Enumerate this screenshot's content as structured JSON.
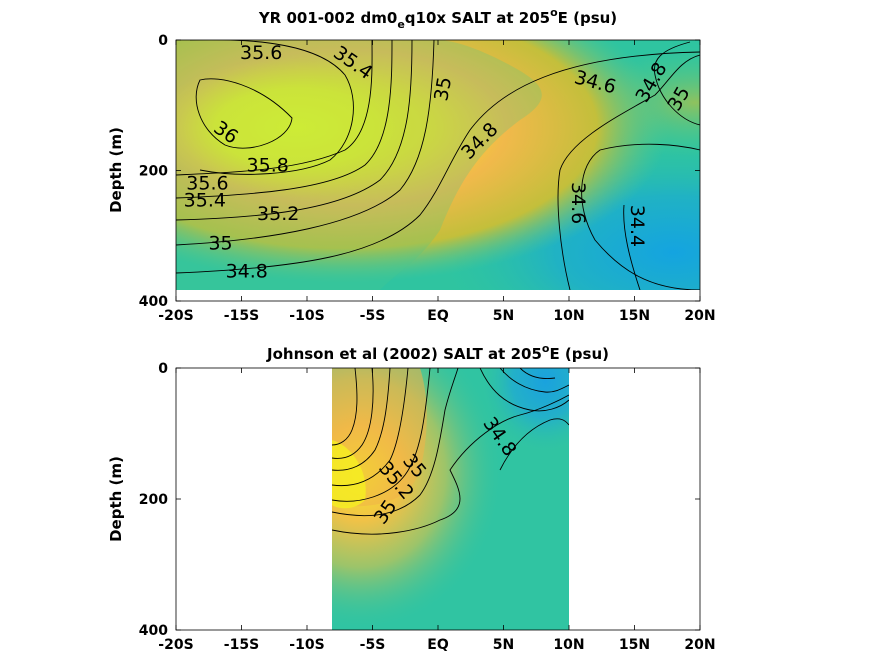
{
  "colors": {
    "low": "#1aa3dc",
    "mid": "#2fc4a0",
    "high": "#f5f51e",
    "axis": "#000000",
    "background": "#ffffff"
  },
  "chart_data": [
    {
      "type": "heatmap",
      "title_parts": [
        "YR 001-002 dm0",
        "e",
        "q10x SALT at 205",
        "o",
        "E (psu)"
      ],
      "xlabel": "",
      "ylabel": "Depth (m)",
      "x_ticks": [
        "-20S",
        "-15S",
        "-10S",
        "-5S",
        "EQ",
        "5N",
        "10N",
        "15N",
        "20N"
      ],
      "y_ticks": [
        "0",
        "200",
        "400"
      ],
      "xlim": [
        -20,
        20
      ],
      "ylim": [
        0,
        400
      ],
      "data_extent": {
        "x": [
          -20,
          20
        ],
        "depth": [
          0,
          385
        ]
      },
      "salinity_range": [
        34.3,
        36.1
      ],
      "features": [
        {
          "x": -12.5,
          "depth": 110,
          "salinity": 36.05
        },
        {
          "x": -18,
          "depth": 180,
          "salinity": 35.5
        },
        {
          "x": 0,
          "depth": 150,
          "salinity": 34.85
        },
        {
          "x": 6,
          "depth": 250,
          "salinity": 34.75
        },
        {
          "x": 18,
          "depth": 310,
          "salinity": 34.35
        },
        {
          "x": 19,
          "depth": 80,
          "salinity": 35.1
        }
      ],
      "contour_labels": [
        {
          "text": "35.6",
          "x": -13.5,
          "depth": 20,
          "angle": 0
        },
        {
          "text": "35.4",
          "x": -6.5,
          "depth": 35,
          "angle": 35
        },
        {
          "text": "35",
          "x": 0.4,
          "depth": 75,
          "angle": -80
        },
        {
          "text": "34.6",
          "x": 12,
          "depth": 65,
          "angle": 15
        },
        {
          "text": "34.8",
          "x": 16.3,
          "depth": 65,
          "angle": -60
        },
        {
          "text": "35",
          "x": 18.4,
          "depth": 90,
          "angle": -60
        },
        {
          "text": "36",
          "x": -16.2,
          "depth": 142,
          "angle": 35
        },
        {
          "text": "34.8",
          "x": 3.2,
          "depth": 155,
          "angle": -45
        },
        {
          "text": "35.8",
          "x": -13,
          "depth": 192,
          "angle": 0
        },
        {
          "text": "35.6",
          "x": -17.6,
          "depth": 220,
          "angle": 0
        },
        {
          "text": "35.4",
          "x": -17.8,
          "depth": 246,
          "angle": 0
        },
        {
          "text": "35.2",
          "x": -12.2,
          "depth": 267,
          "angle": 0
        },
        {
          "text": "34.6",
          "x": 10.7,
          "depth": 250,
          "angle": 90
        },
        {
          "text": "34.4",
          "x": 15.2,
          "depth": 285,
          "angle": 90
        },
        {
          "text": "35",
          "x": -16.6,
          "depth": 312,
          "angle": 0
        },
        {
          "text": "34.8",
          "x": -14.6,
          "depth": 355,
          "angle": 0
        }
      ]
    },
    {
      "type": "heatmap",
      "title_parts": [
        "Johnson et al (2002) SALT at 205",
        "o",
        "E (psu)"
      ],
      "xlabel": "",
      "ylabel": "Depth (m)",
      "x_ticks": [
        "-20S",
        "-15S",
        "-10S",
        "-5S",
        "EQ",
        "5N",
        "10N",
        "15N",
        "20N"
      ],
      "y_ticks": [
        "0",
        "200",
        "400"
      ],
      "xlim": [
        -20,
        20
      ],
      "ylim": [
        0,
        400
      ],
      "data_extent": {
        "x": [
          -8,
          10
        ],
        "depth": [
          0,
          400
        ]
      },
      "salinity_range": [
        34.3,
        36.1
      ],
      "features": [
        {
          "x": -7,
          "depth": 150,
          "salinity": 36.0
        },
        {
          "x": -5,
          "depth": 40,
          "salinity": 35.5
        },
        {
          "x": 2,
          "depth": 200,
          "salinity": 34.9
        },
        {
          "x": 8.5,
          "depth": 30,
          "salinity": 34.4
        }
      ],
      "contour_labels": [
        {
          "text": "34.8",
          "x": 4.7,
          "depth": 105,
          "angle": 55
        },
        {
          "text": "35",
          "x": -1.8,
          "depth": 150,
          "angle": 50
        },
        {
          "text": "35.2",
          "x": -3.2,
          "depth": 172,
          "angle": 50
        },
        {
          "text": "35",
          "x": -4,
          "depth": 220,
          "angle": -55
        }
      ]
    }
  ]
}
